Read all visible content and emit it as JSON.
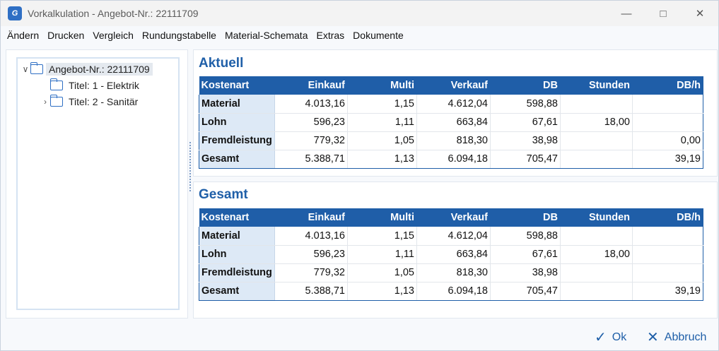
{
  "window": {
    "title": "Vorkalkulation - Angebot-Nr.: 22111709",
    "icon_text": "G",
    "controls": [
      "minimize-icon",
      "maximize-icon",
      "close-icon"
    ]
  },
  "menu": [
    "Ändern",
    "Drucken",
    "Vergleich",
    "Rundungstabelle",
    "Material-Schemata",
    "Extras",
    "Dokumente"
  ],
  "tree": {
    "root": "Angebot-Nr.: 22111709",
    "children": [
      "Titel: 1 - Elektrik",
      "Titel: 2 - Sanitär"
    ]
  },
  "columns": [
    "Kostenart",
    "Einkauf",
    "Multi",
    "Verkauf",
    "DB",
    "Stunden",
    "DB/h"
  ],
  "sections": [
    {
      "title": "Aktuell",
      "rows": [
        [
          "Material",
          "4.013,16",
          "1,15",
          "4.612,04",
          "598,88",
          "",
          ""
        ],
        [
          "Lohn",
          "596,23",
          "1,11",
          "663,84",
          "67,61",
          "18,00",
          ""
        ],
        [
          "Fremdleistung",
          "779,32",
          "1,05",
          "818,30",
          "38,98",
          "",
          "0,00"
        ],
        [
          "Gesamt",
          "5.388,71",
          "1,13",
          "6.094,18",
          "705,47",
          "",
          "39,19"
        ]
      ]
    },
    {
      "title": "Gesamt",
      "rows": [
        [
          "Material",
          "4.013,16",
          "1,15",
          "4.612,04",
          "598,88",
          "",
          ""
        ],
        [
          "Lohn",
          "596,23",
          "1,11",
          "663,84",
          "67,61",
          "18,00",
          ""
        ],
        [
          "Fremdleistung",
          "779,32",
          "1,05",
          "818,30",
          "38,98",
          "",
          ""
        ],
        [
          "Gesamt",
          "5.388,71",
          "1,13",
          "6.094,18",
          "705,47",
          "",
          "39,19"
        ]
      ]
    }
  ],
  "buttons": {
    "ok": "Ok",
    "cancel": "Abbruch"
  },
  "colors": {
    "accent": "#1f5ea8",
    "category_bg": "#dde9f6"
  }
}
